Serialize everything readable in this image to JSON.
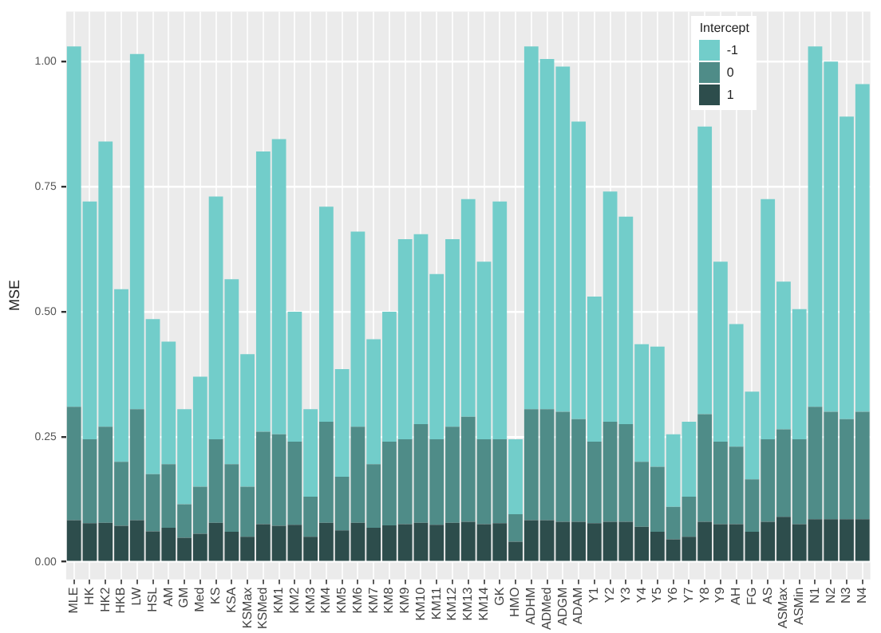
{
  "chart_data": {
    "type": "bar",
    "stacked": true,
    "ylabel": "MSE",
    "legend_title": "Intercept",
    "legend": "top right",
    "grid": true,
    "categories": [
      "MLE",
      "HK",
      "HK2",
      "HKB",
      "LW",
      "HSL",
      "AM",
      "GM",
      "Med",
      "KS",
      "KSA",
      "KSMax",
      "KSMed",
      "KM1",
      "KM2",
      "KM3",
      "KM4",
      "KM5",
      "KM6",
      "KM7",
      "KM8",
      "KM9",
      "KM10",
      "KM11",
      "KM12",
      "KM13",
      "KM14",
      "GK",
      "HMO",
      "ADHM",
      "ADMed",
      "ADGM",
      "ADAM",
      "Y1",
      "Y2",
      "Y3",
      "Y4",
      "Y5",
      "Y6",
      "Y7",
      "Y8",
      "Y9",
      "AH",
      "FG",
      "AS",
      "ASMax",
      "ASMin",
      "N1",
      "N2",
      "N3",
      "N4"
    ],
    "ylim": [
      -0.035,
      1.1
    ],
    "yticks": [
      {
        "value": 0,
        "label": "0.00"
      },
      {
        "value": 0.25,
        "label": "0.25"
      },
      {
        "value": 0.5,
        "label": "0.50"
      },
      {
        "value": 0.75,
        "label": "0.75"
      },
      {
        "value": 1,
        "label": "1.00"
      }
    ],
    "series": [
      {
        "name": "1",
        "color": "#2d4d4c",
        "values": [
          0.083,
          0.077,
          0.078,
          0.072,
          0.083,
          0.061,
          0.068,
          0.048,
          0.056,
          0.078,
          0.06,
          0.05,
          0.075,
          0.072,
          0.074,
          0.05,
          0.078,
          0.063,
          0.078,
          0.068,
          0.073,
          0.075,
          0.078,
          0.074,
          0.078,
          0.08,
          0.075,
          0.077,
          0.04,
          0.083,
          0.083,
          0.08,
          0.08,
          0.077,
          0.08,
          0.08,
          0.07,
          0.06,
          0.045,
          0.05,
          0.08,
          0.075,
          0.075,
          0.06,
          0.08,
          0.09,
          0.075,
          0.085,
          0.085,
          0.085,
          0.085
        ]
      },
      {
        "name": "0",
        "color": "#4f8c88",
        "values": [
          0.227,
          0.168,
          0.192,
          0.128,
          0.222,
          0.114,
          0.127,
          0.067,
          0.094,
          0.167,
          0.135,
          0.1,
          0.185,
          0.183,
          0.166,
          0.08,
          0.202,
          0.107,
          0.192,
          0.127,
          0.167,
          0.17,
          0.197,
          0.171,
          0.192,
          0.21,
          0.17,
          0.168,
          0.055,
          0.222,
          0.222,
          0.22,
          0.205,
          0.163,
          0.2,
          0.195,
          0.13,
          0.13,
          0.065,
          0.08,
          0.215,
          0.165,
          0.155,
          0.105,
          0.165,
          0.175,
          0.17,
          0.225,
          0.215,
          0.2,
          0.215
        ]
      },
      {
        "name": "-1",
        "color": "#72cdca",
        "values": [
          0.72,
          0.475,
          0.57,
          0.345,
          0.71,
          0.31,
          0.245,
          0.19,
          0.22,
          0.485,
          0.37,
          0.265,
          0.56,
          0.59,
          0.26,
          0.175,
          0.43,
          0.215,
          0.39,
          0.25,
          0.26,
          0.4,
          0.38,
          0.33,
          0.375,
          0.435,
          0.355,
          0.475,
          0.15,
          0.725,
          0.7,
          0.69,
          0.595,
          0.29,
          0.46,
          0.415,
          0.235,
          0.24,
          0.145,
          0.15,
          0.575,
          0.36,
          0.245,
          0.175,
          0.48,
          0.295,
          0.26,
          0.72,
          0.7,
          0.605,
          0.655
        ]
      }
    ]
  }
}
